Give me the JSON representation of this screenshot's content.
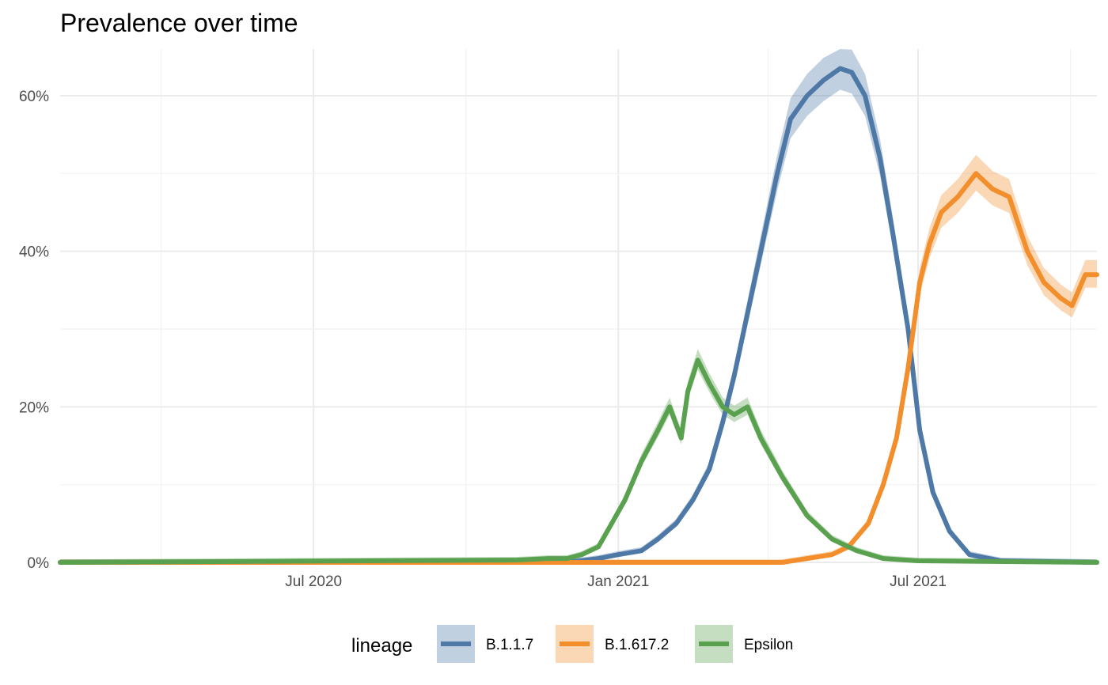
{
  "chart_data": {
    "type": "line",
    "title": "Prevalence over time",
    "xlabel": "",
    "ylabel": "",
    "x_range": [
      "2020-01-30",
      "2021-10-17"
    ],
    "ylim": [
      0,
      0.66
    ],
    "x_ticks": [
      {
        "date": "2020-07-01",
        "label": "Jul 2020"
      },
      {
        "date": "2021-01-01",
        "label": "Jan 2021"
      },
      {
        "date": "2021-07-01",
        "label": "Jul 2021"
      }
    ],
    "y_ticks": [
      {
        "value": 0,
        "label": "0%"
      },
      {
        "value": 0.2,
        "label": "20%"
      },
      {
        "value": 0.4,
        "label": "40%"
      },
      {
        "value": 0.6,
        "label": "60%"
      }
    ],
    "grid": true,
    "legend": {
      "title": "lineage",
      "position": "bottom"
    },
    "series": [
      {
        "name": "B.1.1.7",
        "color": "#4E79A7",
        "points": [
          [
            "2020-01-30",
            0.0
          ],
          [
            "2020-12-01",
            0.0
          ],
          [
            "2020-12-20",
            0.005
          ],
          [
            "2021-01-01",
            0.01
          ],
          [
            "2021-01-15",
            0.015
          ],
          [
            "2021-01-25",
            0.03
          ],
          [
            "2021-02-05",
            0.05
          ],
          [
            "2021-02-15",
            0.08
          ],
          [
            "2021-02-25",
            0.12
          ],
          [
            "2021-03-05",
            0.18
          ],
          [
            "2021-03-12",
            0.24
          ],
          [
            "2021-03-20",
            0.32
          ],
          [
            "2021-03-30",
            0.42
          ],
          [
            "2021-04-07",
            0.5
          ],
          [
            "2021-04-15",
            0.57
          ],
          [
            "2021-04-25",
            0.6
          ],
          [
            "2021-05-05",
            0.62
          ],
          [
            "2021-05-15",
            0.635
          ],
          [
            "2021-05-22",
            0.63
          ],
          [
            "2021-05-30",
            0.6
          ],
          [
            "2021-06-08",
            0.52
          ],
          [
            "2021-06-16",
            0.42
          ],
          [
            "2021-06-25",
            0.3
          ],
          [
            "2021-07-02",
            0.17
          ],
          [
            "2021-07-10",
            0.09
          ],
          [
            "2021-07-20",
            0.04
          ],
          [
            "2021-08-01",
            0.01
          ],
          [
            "2021-08-20",
            0.002
          ],
          [
            "2021-10-17",
            0.0
          ]
        ]
      },
      {
        "name": "B.1.617.2",
        "color": "#F28E2B",
        "points": [
          [
            "2020-01-30",
            0.0
          ],
          [
            "2021-04-10",
            0.0
          ],
          [
            "2021-04-25",
            0.005
          ],
          [
            "2021-05-10",
            0.01
          ],
          [
            "2021-05-20",
            0.02
          ],
          [
            "2021-06-01",
            0.05
          ],
          [
            "2021-06-10",
            0.1
          ],
          [
            "2021-06-18",
            0.16
          ],
          [
            "2021-06-25",
            0.25
          ],
          [
            "2021-07-02",
            0.36
          ],
          [
            "2021-07-08",
            0.41
          ],
          [
            "2021-07-15",
            0.45
          ],
          [
            "2021-07-25",
            0.47
          ],
          [
            "2021-08-05",
            0.5
          ],
          [
            "2021-08-15",
            0.48
          ],
          [
            "2021-08-25",
            0.47
          ],
          [
            "2021-09-05",
            0.4
          ],
          [
            "2021-09-15",
            0.36
          ],
          [
            "2021-09-25",
            0.34
          ],
          [
            "2021-10-02",
            0.33
          ],
          [
            "2021-10-10",
            0.37
          ],
          [
            "2021-10-17",
            0.37
          ]
        ]
      },
      {
        "name": "Epsilon",
        "color": "#59A14F",
        "points": [
          [
            "2020-01-30",
            0.0
          ],
          [
            "2020-11-01",
            0.003
          ],
          [
            "2020-11-20",
            0.005
          ],
          [
            "2020-12-01",
            0.005
          ],
          [
            "2020-12-10",
            0.01
          ],
          [
            "2020-12-20",
            0.02
          ],
          [
            "2020-12-28",
            0.05
          ],
          [
            "2021-01-05",
            0.08
          ],
          [
            "2021-01-15",
            0.13
          ],
          [
            "2021-01-25",
            0.17
          ],
          [
            "2021-02-01",
            0.2
          ],
          [
            "2021-02-08",
            0.16
          ],
          [
            "2021-02-12",
            0.22
          ],
          [
            "2021-02-18",
            0.26
          ],
          [
            "2021-02-25",
            0.23
          ],
          [
            "2021-03-05",
            0.2
          ],
          [
            "2021-03-12",
            0.19
          ],
          [
            "2021-03-20",
            0.2
          ],
          [
            "2021-03-28",
            0.16
          ],
          [
            "2021-04-10",
            0.11
          ],
          [
            "2021-04-25",
            0.06
          ],
          [
            "2021-05-10",
            0.03
          ],
          [
            "2021-05-25",
            0.015
          ],
          [
            "2021-06-10",
            0.005
          ],
          [
            "2021-07-01",
            0.002
          ],
          [
            "2021-10-17",
            0.0
          ]
        ]
      }
    ]
  }
}
